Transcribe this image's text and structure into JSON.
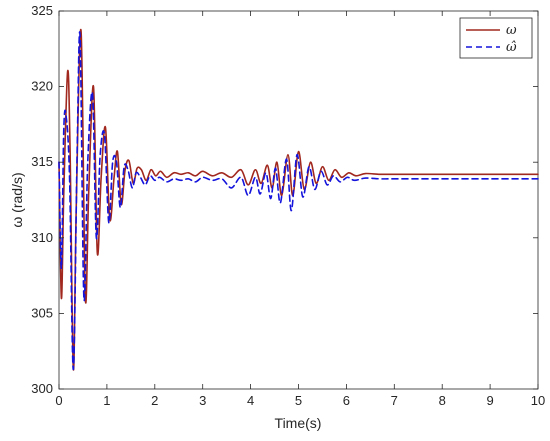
{
  "chart_data": {
    "type": "line",
    "title": "",
    "xlabel": "Time(s)",
    "ylabel": "ω (rad/s)",
    "xlim": [
      0,
      10
    ],
    "ylim": [
      300,
      325
    ],
    "xticks": [
      0,
      1,
      2,
      3,
      4,
      5,
      6,
      7,
      8,
      9,
      10
    ],
    "yticks": [
      300,
      305,
      310,
      315,
      320,
      325
    ],
    "xtick_labels": [
      "0",
      "1",
      "2",
      "3",
      "4",
      "5",
      "6",
      "7",
      "8",
      "9",
      "10"
    ],
    "ytick_labels": [
      "300",
      "305",
      "310",
      "315",
      "320",
      "325"
    ],
    "grid": false,
    "legend_position": "top-right",
    "series": [
      {
        "name": "ω",
        "color": "#a0281e",
        "style": "solid",
        "x": [
          0.0,
          0.05,
          0.1,
          0.18,
          0.23,
          0.3,
          0.36,
          0.46,
          0.55,
          0.62,
          0.72,
          0.8,
          0.88,
          0.97,
          1.06,
          1.15,
          1.22,
          1.3,
          1.38,
          1.46,
          1.55,
          1.63,
          1.72,
          1.82,
          1.92,
          2.02,
          2.12,
          2.25,
          2.4,
          2.55,
          2.7,
          2.85,
          3.0,
          3.2,
          3.4,
          3.6,
          3.8,
          3.95,
          4.1,
          4.22,
          4.35,
          4.45,
          4.55,
          4.65,
          4.78,
          4.88,
          5.0,
          5.12,
          5.25,
          5.37,
          5.5,
          5.63,
          5.76,
          5.9,
          6.05,
          6.2,
          6.4,
          6.7,
          7.0,
          8.0,
          9.0,
          10.0
        ],
        "y": [
          315.0,
          306.0,
          313.0,
          321.0,
          316.0,
          301.3,
          312.0,
          323.7,
          306.0,
          313.0,
          320.0,
          309.0,
          314.0,
          317.3,
          311.2,
          314.0,
          315.7,
          312.2,
          314.5,
          315.1,
          313.6,
          314.6,
          314.5,
          313.8,
          314.5,
          314.1,
          314.4,
          314.0,
          314.3,
          314.2,
          314.3,
          314.1,
          314.4,
          314.1,
          314.3,
          314.0,
          314.5,
          313.5,
          314.5,
          313.6,
          314.8,
          313.3,
          315.0,
          312.8,
          315.5,
          312.8,
          315.7,
          313.2,
          315.0,
          313.6,
          314.7,
          313.8,
          314.5,
          314.0,
          314.3,
          314.1,
          314.25,
          314.2,
          314.2,
          314.2,
          314.2,
          314.2
        ]
      },
      {
        "name": "ω̂",
        "color": "#1414dc",
        "style": "dashed",
        "x": [
          0.0,
          0.05,
          0.1,
          0.15,
          0.22,
          0.3,
          0.38,
          0.44,
          0.52,
          0.6,
          0.7,
          0.78,
          0.86,
          0.95,
          1.04,
          1.12,
          1.2,
          1.28,
          1.36,
          1.44,
          1.53,
          1.61,
          1.7,
          1.8,
          1.9,
          2.0,
          2.1,
          2.25,
          2.4,
          2.55,
          2.7,
          2.85,
          3.0,
          3.2,
          3.4,
          3.6,
          3.8,
          3.95,
          4.1,
          4.2,
          4.32,
          4.42,
          4.52,
          4.62,
          4.75,
          4.85,
          4.97,
          5.09,
          5.22,
          5.34,
          5.47,
          5.6,
          5.73,
          5.87,
          6.02,
          6.17,
          6.4,
          6.7,
          7.0,
          8.0,
          9.0,
          10.0
        ],
        "y": [
          315.0,
          308.0,
          317.2,
          318.0,
          314.0,
          301.3,
          316.0,
          323.3,
          306.0,
          315.0,
          319.5,
          310.0,
          315.5,
          316.8,
          311.0,
          315.0,
          315.0,
          312.0,
          314.7,
          314.5,
          313.3,
          314.3,
          314.0,
          313.5,
          314.1,
          313.8,
          314.0,
          313.7,
          313.9,
          313.8,
          313.9,
          313.7,
          314.0,
          313.8,
          313.9,
          313.3,
          314.0,
          312.8,
          314.0,
          312.9,
          314.3,
          312.6,
          314.6,
          312.3,
          315.2,
          311.8,
          315.5,
          312.7,
          314.7,
          313.2,
          314.4,
          313.5,
          314.1,
          313.7,
          314.0,
          313.8,
          313.95,
          313.9,
          313.9,
          313.9,
          313.9,
          313.9
        ]
      }
    ]
  }
}
